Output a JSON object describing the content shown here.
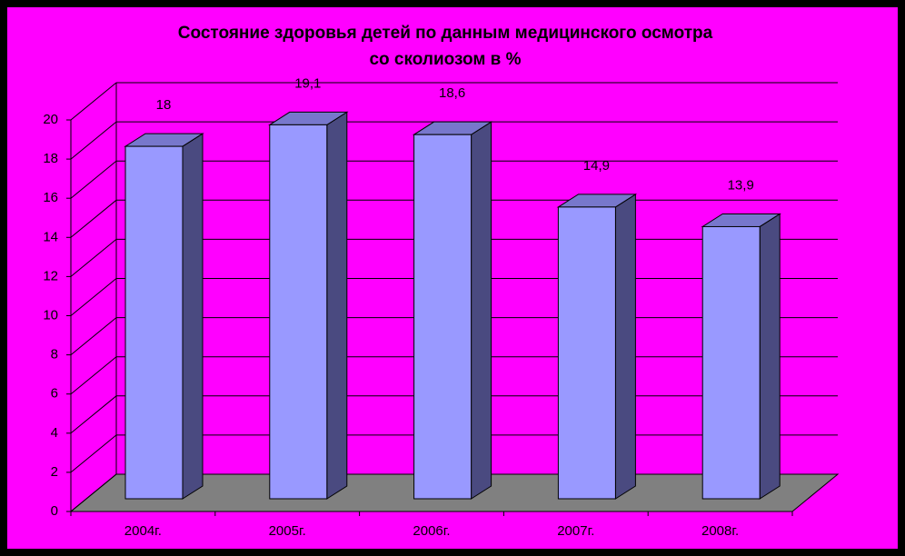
{
  "chart_data": {
    "type": "bar3d",
    "title": [
      "Состояние здоровья детей по данным медицинского осмотра",
      "со сколиозом в %"
    ],
    "categories": [
      "2004г.",
      "2005г.",
      "2006г.",
      "2007г.",
      "2008г."
    ],
    "values": [
      18,
      19.1,
      18.6,
      14.9,
      13.9
    ],
    "value_labels": [
      "18",
      "19,1",
      "18,6",
      "14,9",
      "13,9"
    ],
    "color": "#9999ff",
    "ylim": [
      0,
      20
    ],
    "yticks": [
      0,
      2,
      4,
      6,
      8,
      10,
      12,
      14,
      16,
      18,
      20
    ],
    "grid": true
  }
}
